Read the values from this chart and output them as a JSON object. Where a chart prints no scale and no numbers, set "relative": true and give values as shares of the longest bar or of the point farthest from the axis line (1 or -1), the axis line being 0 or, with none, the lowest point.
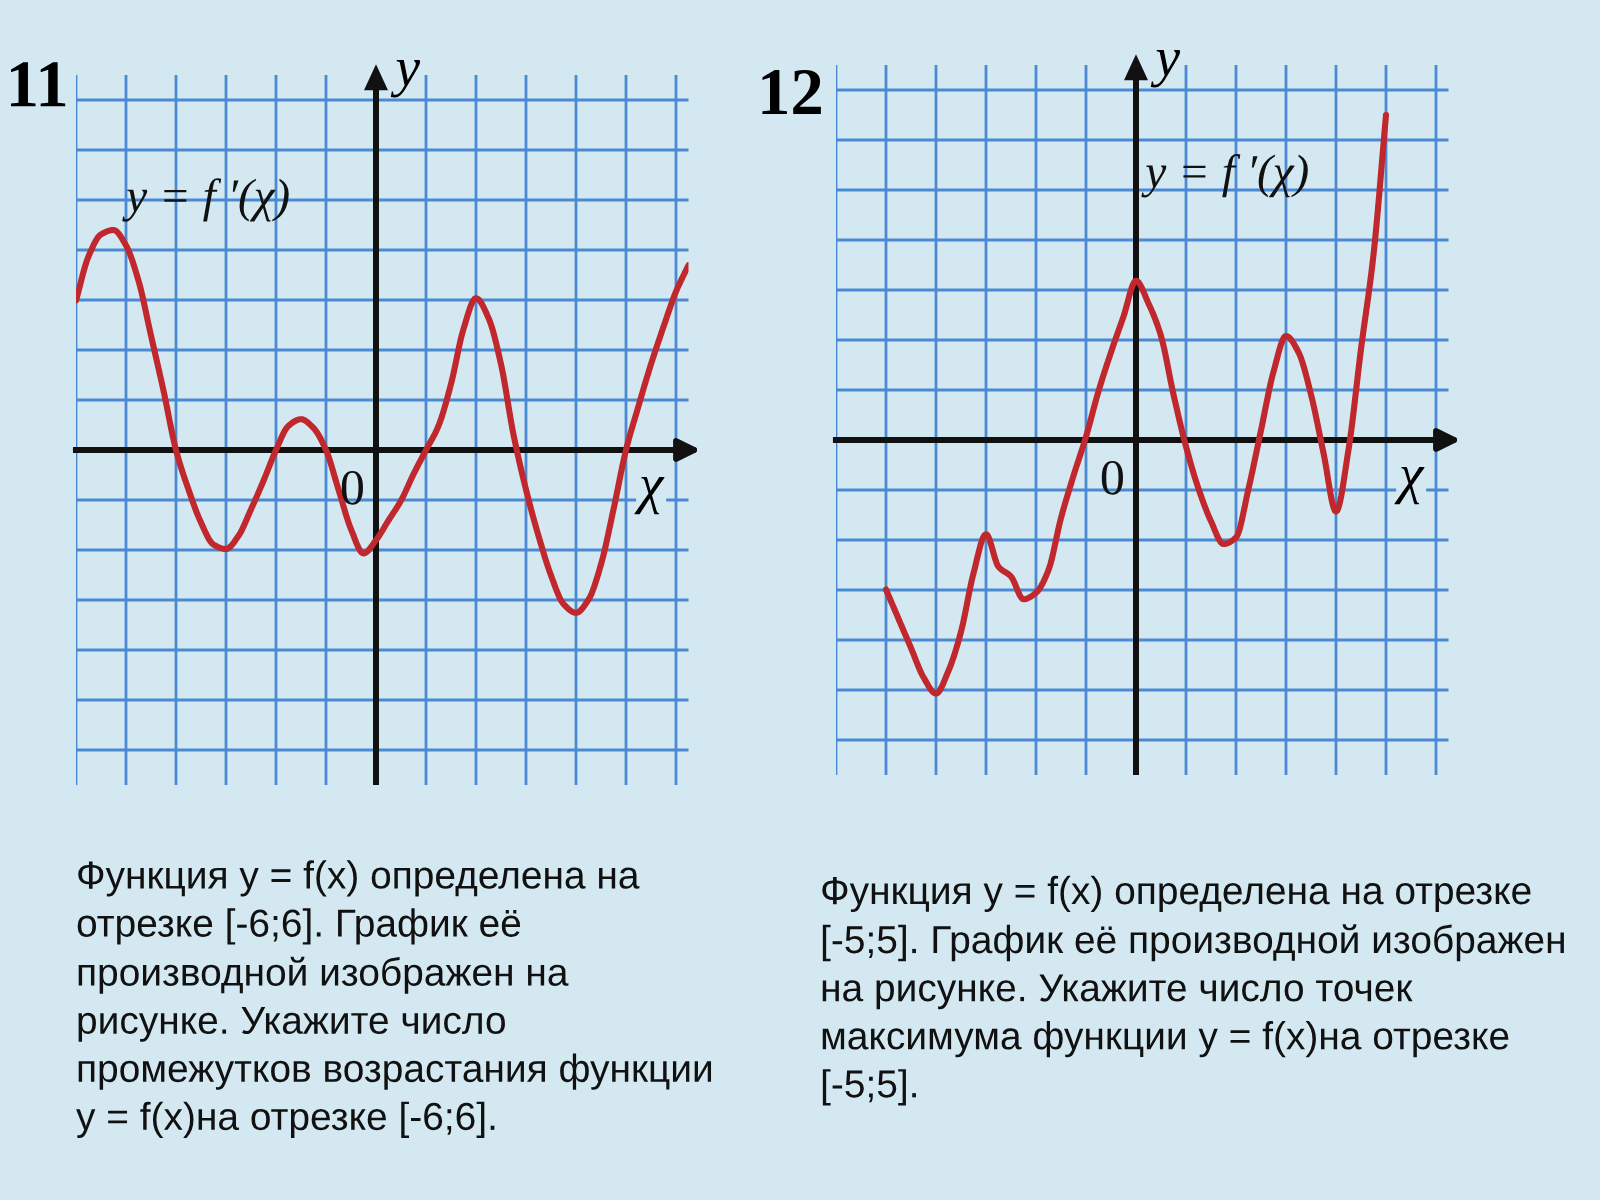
{
  "chart_data": [
    {
      "type": "line",
      "title": "11",
      "xlabel": "χ",
      "ylabel": "y",
      "relative": true,
      "grid": true,
      "categories": [
        null,
        null,
        null,
        null,
        null,
        null,
        null,
        null,
        null,
        null,
        null,
        null,
        null,
        null,
        null,
        null,
        null,
        null,
        null,
        null,
        null,
        null,
        null,
        null,
        null,
        null,
        null,
        null,
        null,
        null,
        null,
        null,
        null,
        null,
        null,
        null,
        null,
        null,
        null,
        null,
        null,
        null,
        null,
        null,
        null,
        null,
        null,
        null,
        null,
        null
      ],
      "series": [
        {
          "color": "#c0282d",
          "values": [
            0.68,
            0.88,
            0.98,
            1,
            0.93,
            0.77,
            0.52,
            0.27,
            0,
            -0.18,
            -0.33,
            -0.43,
            -0.45,
            -0.39,
            -0.27,
            -0.14,
            0,
            0.11,
            0.14,
            0.1,
            0,
            -0.18,
            -0.36,
            -0.47,
            -0.41,
            -0.32,
            -0.23,
            -0.11,
            0,
            0.11,
            0.3,
            0.55,
            0.69,
            0.6,
            0.39,
            0.07,
            -0.18,
            -0.39,
            -0.57,
            -0.7,
            -0.74,
            -0.68,
            -0.52,
            -0.27,
            0,
            0.2,
            0.39,
            0.56,
            0.72,
            0.84
          ]
        }
      ],
      "annotations": [
        "y = f ′(χ)",
        "0",
        "Функция y = f(x) определена на\nотрезке [-6;6]. График её\nпроизводной изображен на\nрисунке. Укажите число\nпромежутков возрастания функции\ny = f(x)на отрезке [-6;6]."
      ]
    },
    {
      "type": "line",
      "title": "12",
      "xlabel": "χ",
      "ylabel": "y",
      "relative": true,
      "grid": true,
      "categories": [
        null,
        null,
        null,
        null,
        null,
        null,
        null,
        null,
        null,
        null,
        null,
        null,
        null,
        null,
        null,
        null,
        null,
        null,
        null,
        null,
        null,
        null,
        null,
        null,
        null,
        null,
        null,
        null,
        null,
        null,
        null,
        null,
        null,
        null,
        null,
        null,
        null,
        null,
        null,
        null,
        null,
        null,
        null,
        null,
        null,
        null,
        null,
        null,
        null,
        null
      ],
      "series": [
        {
          "color": "#c0282d",
          "values": [
            null,
            null,
            null,
            null,
            -0.46,
            -0.55,
            -0.64,
            -0.73,
            -0.78,
            -0.71,
            -0.59,
            -0.41,
            -0.29,
            -0.39,
            -0.42,
            -0.49,
            -0.47,
            -0.4,
            -0.24,
            -0.11,
            0.01,
            0.15,
            0.27,
            0.38,
            0.49,
            0.42,
            0.32,
            0.14,
            -0.02,
            -0.15,
            -0.25,
            -0.32,
            -0.3,
            -0.15,
            0.03,
            0.21,
            0.32,
            0.27,
            0.14,
            -0.04,
            -0.22,
            -0.03,
            0.28,
            0.57,
            1,
            null,
            null,
            null,
            null,
            null
          ]
        }
      ],
      "annotations": [
        "y = f ′(χ)",
        "0",
        "Функция y = f(x) определена на отрезке\n[-5;5]. График её производной изображен\nна рисунке. Укажите число точек\nмаксимума функции y = f(x)на отрезке\n[-5;5]."
      ]
    }
  ]
}
